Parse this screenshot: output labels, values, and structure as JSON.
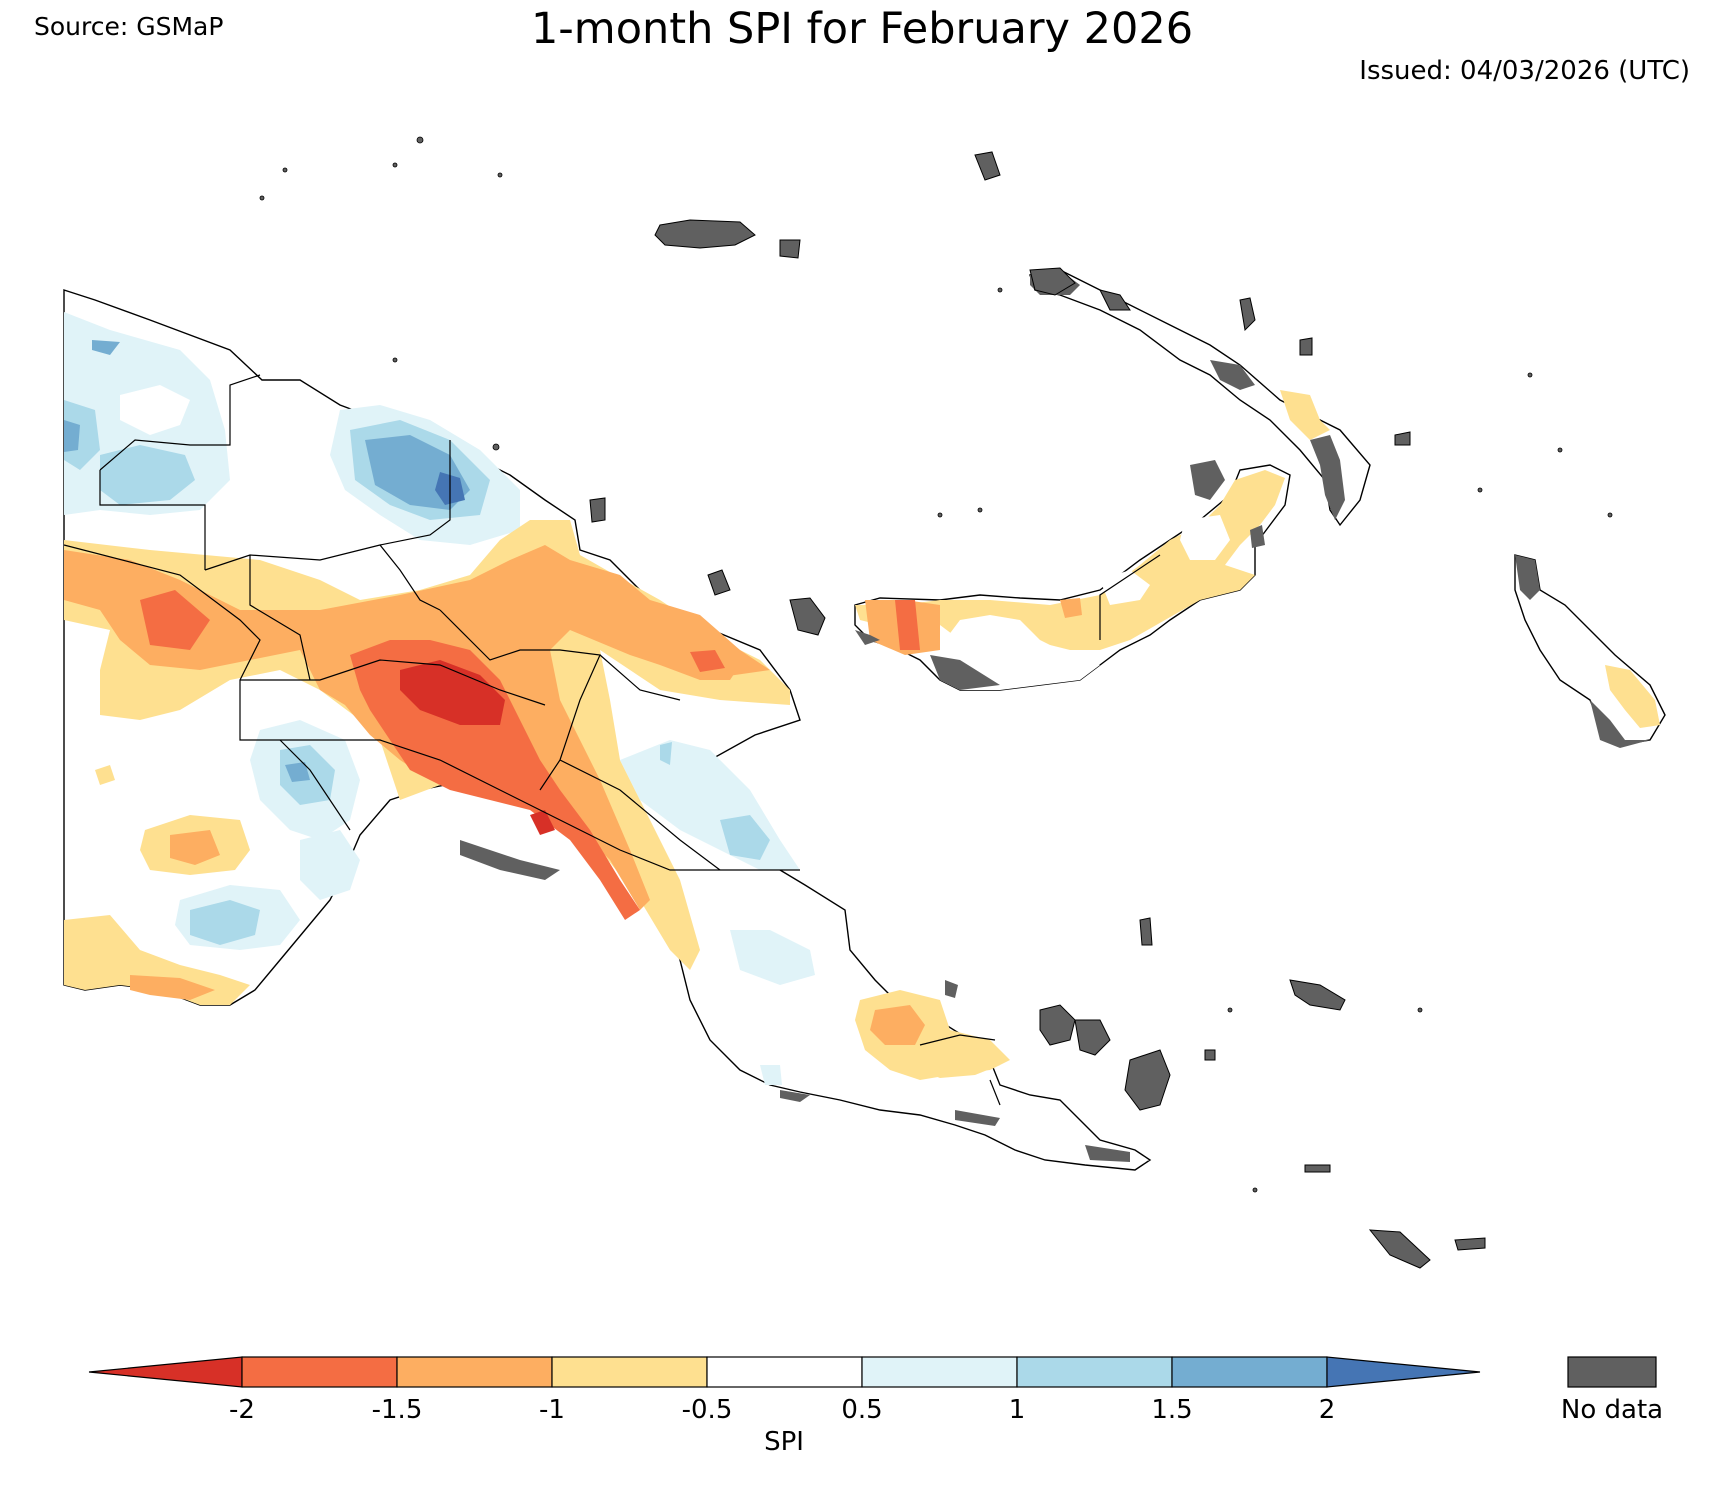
{
  "header": {
    "source": "Source: GSMaP",
    "title": "1-month SPI for February 2026",
    "issued": "Issued: 04/03/2026 (UTC)"
  },
  "colorbar": {
    "label": "SPI",
    "ticks": [
      "-2",
      "-1.5",
      "-1",
      "-0.5",
      "0.5",
      "1",
      "1.5",
      "2"
    ],
    "colors": {
      "below_-2": "#d73027",
      "-2_to_-1.5": "#f46d43",
      "-1.5_to_-1": "#fdae61",
      "-1_to_-0.5": "#fee090",
      "-0.5_to_0.5": "#ffffff",
      "0.5_to_1": "#e0f3f8",
      "1_to_1.5": "#abd9e9",
      "1.5_to_2": "#74add1",
      "above_2": "#4575b4"
    }
  },
  "legend": {
    "no_data_label": "No data",
    "no_data_color": "#606060"
  },
  "map": {
    "region": "Papua New Guinea"
  }
}
